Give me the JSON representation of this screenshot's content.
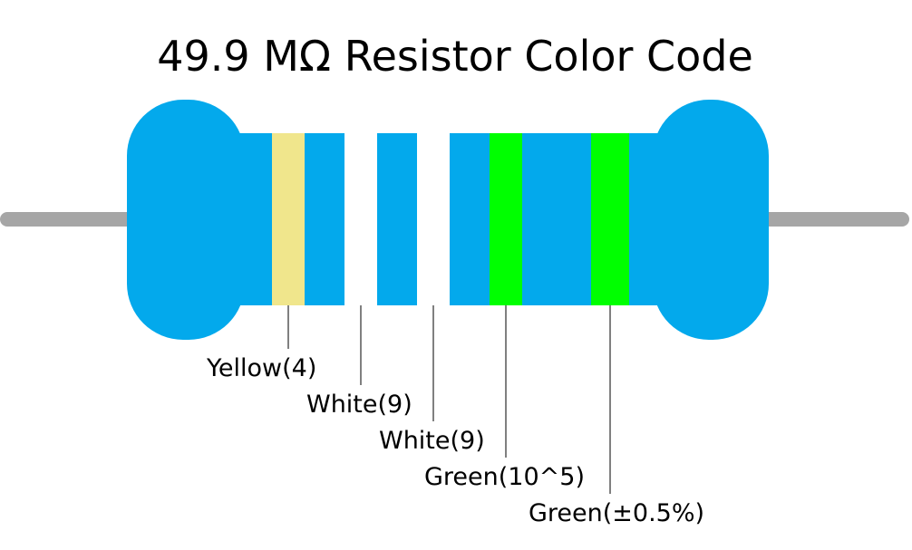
{
  "title": "49.9 MΩ Resistor Color Code",
  "bands": [
    {
      "label": "Yellow(4)",
      "color": "#f0e68c"
    },
    {
      "label": "White(9)",
      "color": "#ffffff"
    },
    {
      "label": "White(9)",
      "color": "#ffffff"
    },
    {
      "label": "Green(10^5)",
      "color": "#00ff00"
    },
    {
      "label": "Green(±0.5%)",
      "color": "#00ff00"
    }
  ]
}
